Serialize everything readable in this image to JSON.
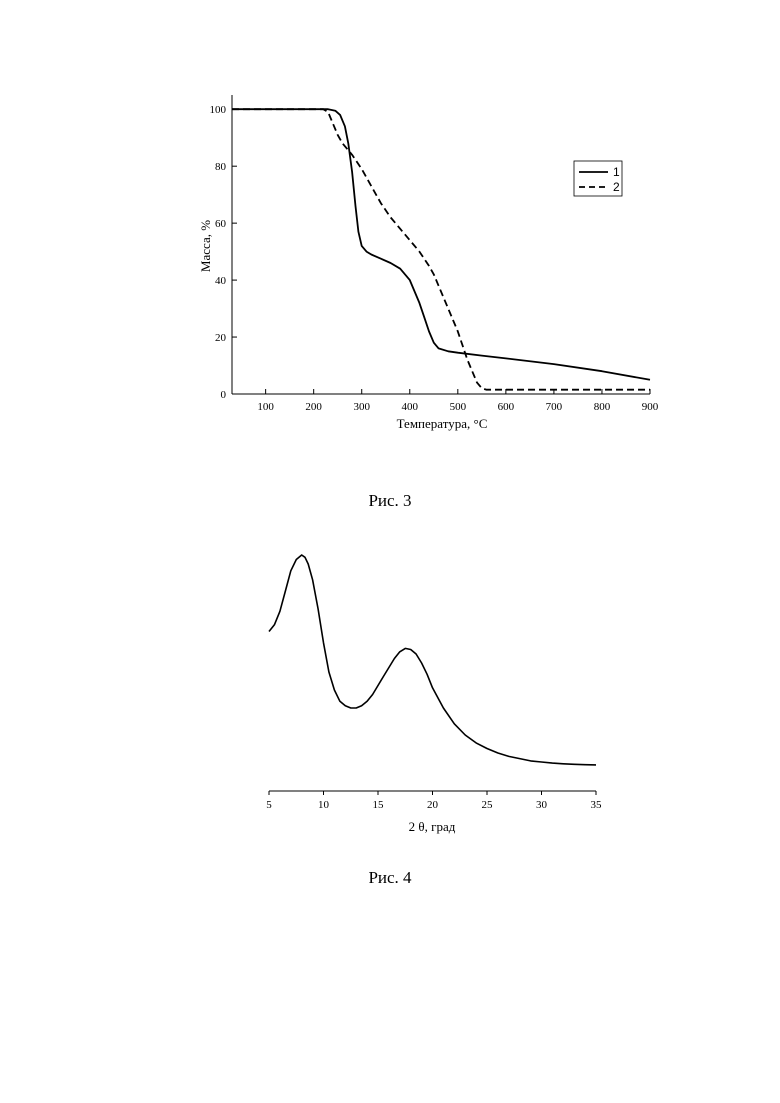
{
  "page": {
    "caption_fig3": "Рис. 3",
    "caption_fig4": "Рис. 4"
  },
  "chart_data": [
    {
      "type": "line",
      "title": "",
      "xlabel": "Температура, °C",
      "ylabel": "Масса, %",
      "xlim": [
        30,
        900
      ],
      "ylim": [
        0,
        105
      ],
      "xticks": [
        100,
        200,
        300,
        400,
        500,
        600,
        700,
        800,
        900
      ],
      "yticks": [
        0,
        20,
        40,
        60,
        80,
        100
      ],
      "grid": false,
      "legend_position": "top-right",
      "series": [
        {
          "name": "1",
          "line_style": "solid",
          "x": [
            30,
            100,
            200,
            230,
            245,
            255,
            265,
            272,
            280,
            287,
            293,
            300,
            310,
            320,
            340,
            360,
            380,
            400,
            410,
            420,
            430,
            440,
            450,
            460,
            480,
            500,
            550,
            600,
            700,
            800,
            900
          ],
          "y": [
            100,
            100,
            100,
            100,
            99.5,
            98,
            94,
            88,
            78,
            66,
            57,
            52,
            50,
            49,
            47.5,
            46,
            44,
            40,
            36,
            32,
            27,
            22,
            18,
            16,
            15,
            14.5,
            13.5,
            12.5,
            10.5,
            8,
            5
          ]
        },
        {
          "name": "2",
          "line_style": "dashed",
          "x": [
            30,
            100,
            200,
            220,
            230,
            240,
            250,
            260,
            270,
            280,
            300,
            320,
            340,
            360,
            380,
            400,
            420,
            440,
            450,
            460,
            470,
            480,
            490,
            500,
            510,
            520,
            530,
            540,
            550,
            560,
            600,
            700,
            800,
            900
          ],
          "y": [
            100,
            100,
            100,
            100,
            99,
            95,
            91,
            88,
            86,
            84,
            79,
            73,
            67,
            62,
            58,
            54,
            50,
            45,
            42,
            38,
            34,
            30,
            26,
            22,
            17,
            12,
            8,
            4,
            2,
            1.5,
            1.5,
            1.5,
            1.5,
            1.5
          ]
        }
      ]
    },
    {
      "type": "line",
      "title": "",
      "xlabel": "2 θ, град",
      "ylabel": "",
      "xlim": [
        5,
        35
      ],
      "ylim": [
        0,
        100
      ],
      "xticks": [
        5,
        10,
        15,
        20,
        25,
        30,
        35
      ],
      "yticks": [],
      "grid": false,
      "legend_position": "none",
      "series": [
        {
          "name": "",
          "line_style": "solid",
          "x": [
            5,
            5.5,
            6,
            6.5,
            7,
            7.5,
            8,
            8.3,
            8.6,
            9,
            9.5,
            10,
            10.5,
            11,
            11.5,
            12,
            12.5,
            13,
            13.5,
            14,
            14.5,
            15,
            15.5,
            16,
            16.5,
            17,
            17.5,
            18,
            18.5,
            19,
            19.5,
            20,
            21,
            22,
            23,
            24,
            25,
            26,
            27,
            28,
            29,
            30,
            31,
            32,
            33,
            34,
            35
          ],
          "y": [
            66,
            69,
            75,
            84,
            93,
            98,
            100,
            99,
            96,
            89,
            76,
            61,
            48,
            40,
            35,
            33,
            32,
            32,
            33,
            35,
            38,
            42,
            46,
            50,
            54,
            57,
            58.5,
            58,
            56,
            52,
            47,
            41,
            32,
            25,
            20,
            16.5,
            14,
            12,
            10.5,
            9.5,
            8.5,
            8,
            7.5,
            7.2,
            7,
            6.8,
            6.7
          ]
        }
      ]
    }
  ]
}
